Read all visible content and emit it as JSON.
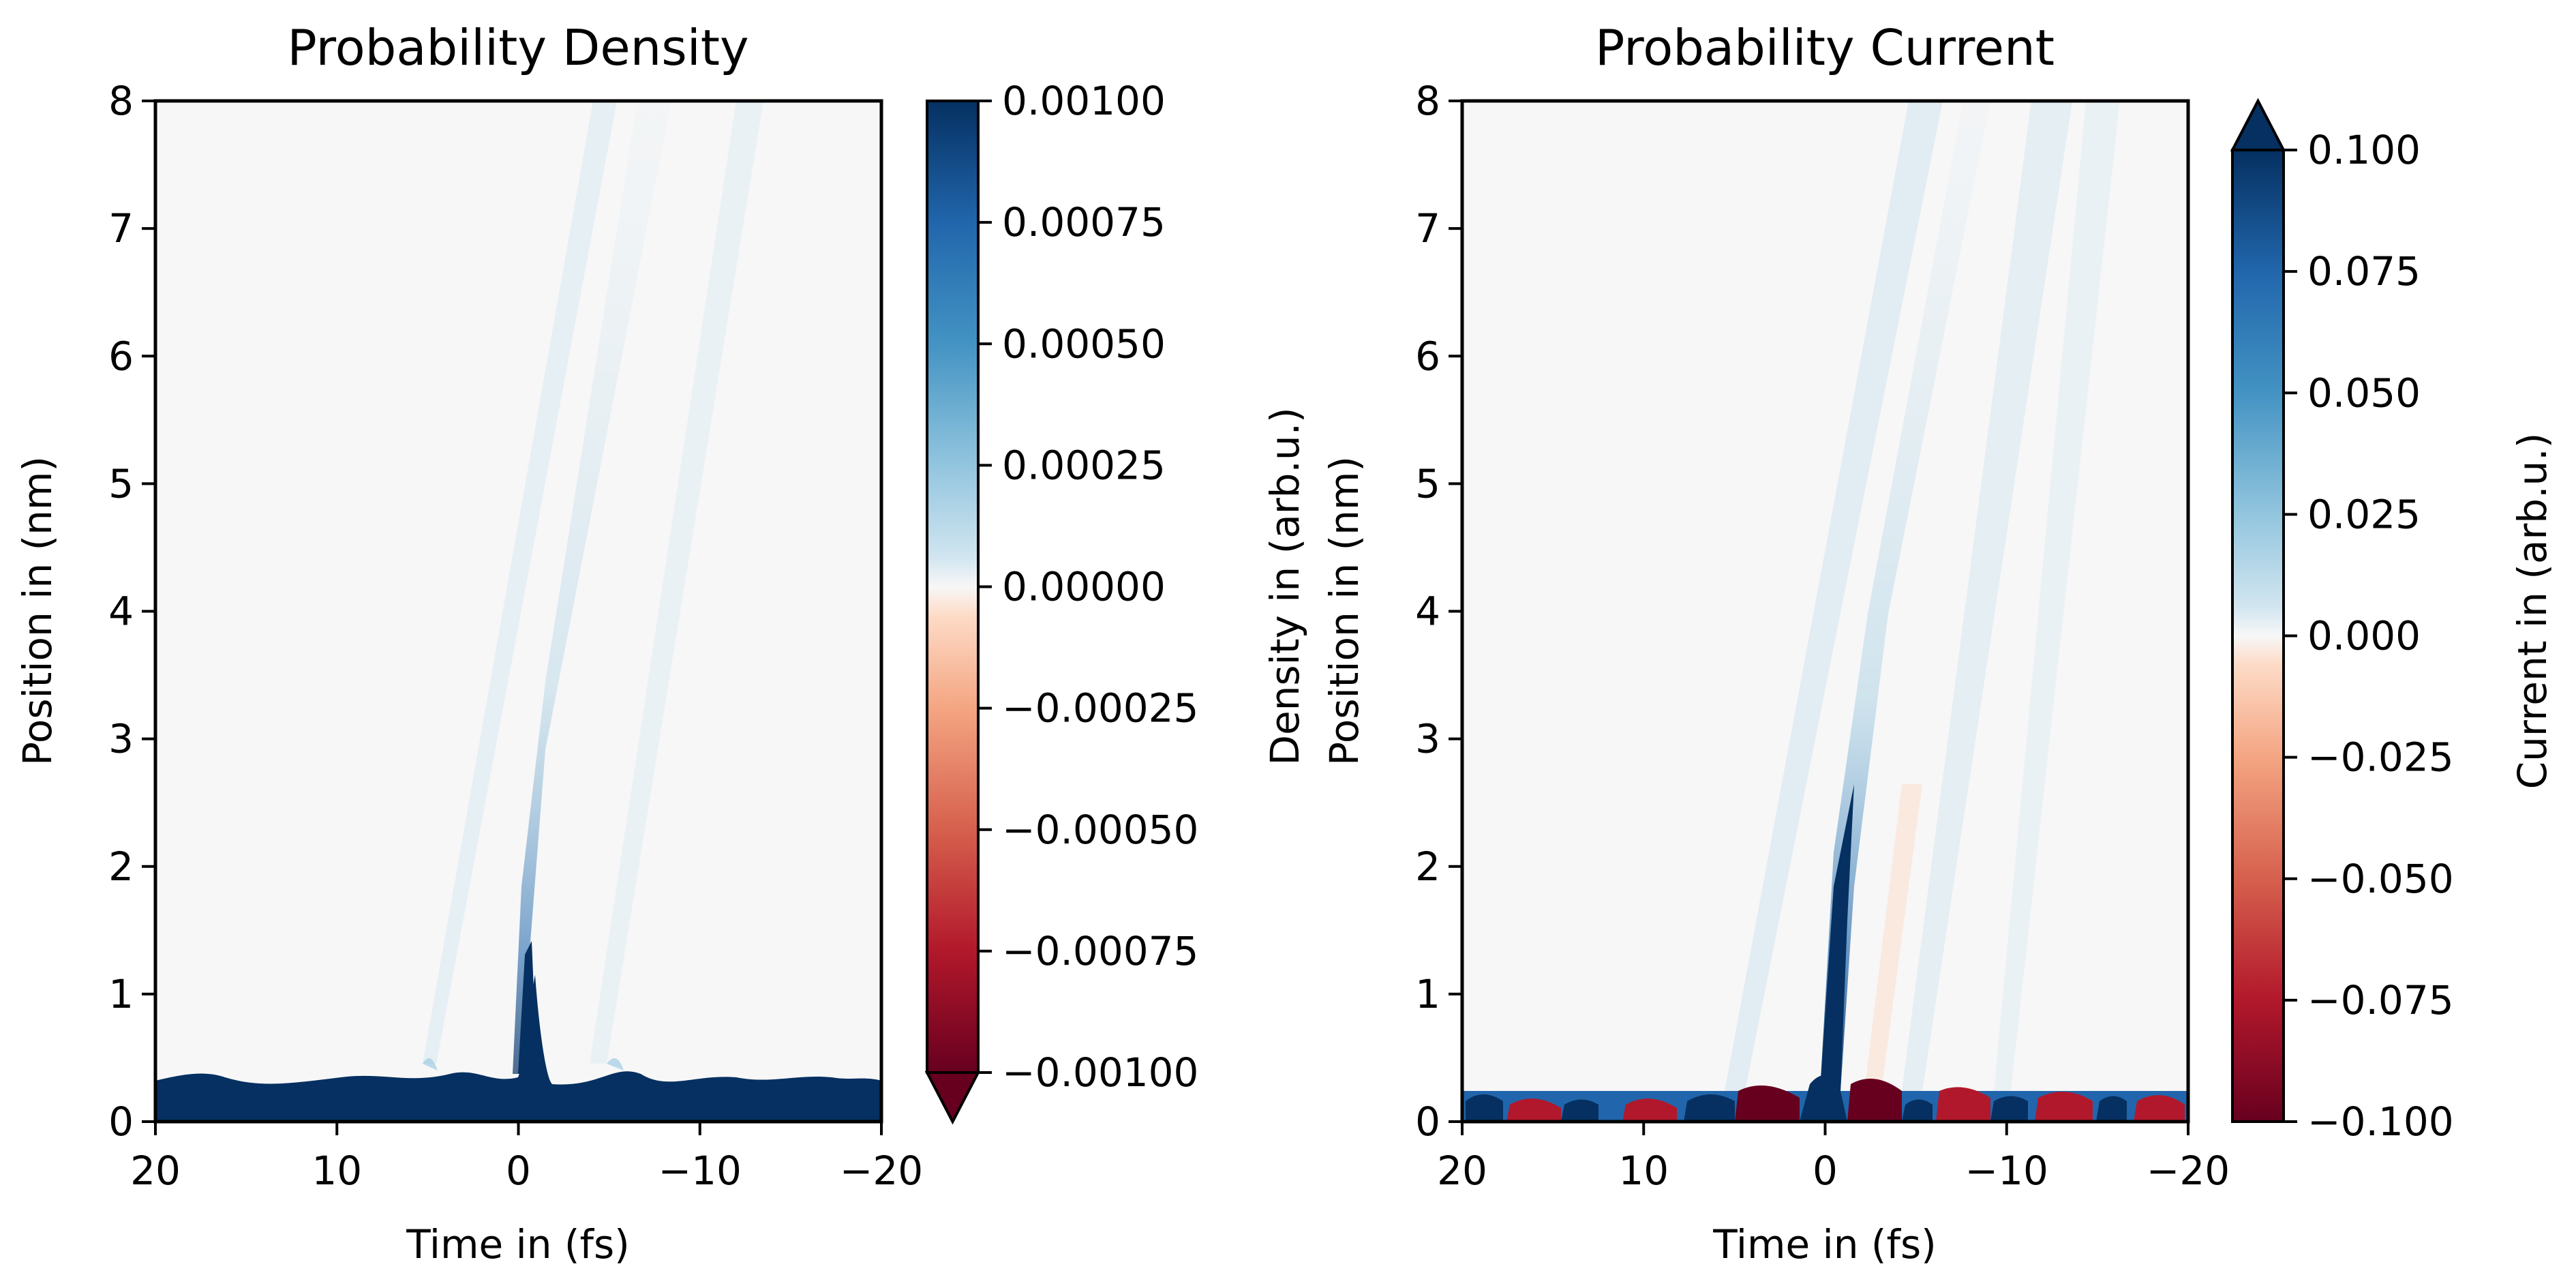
{
  "chart_data": [
    {
      "type": "heatmap",
      "title": "Probability Density",
      "xlabel": "Time in (fs)",
      "ylabel": "Position in (nm)",
      "x_ticks": [
        "20",
        "10",
        "0",
        "−10",
        "−20"
      ],
      "y_ticks": [
        "0",
        "1",
        "2",
        "3",
        "4",
        "5",
        "6",
        "7",
        "8"
      ],
      "xlim": [
        20,
        -20
      ],
      "ylim": [
        0,
        8
      ],
      "colorbar": {
        "label": "Density in (arb.u.)",
        "range": [
          -0.001,
          0.001
        ],
        "ticks": [
          "0.00100",
          "0.00075",
          "0.00050",
          "0.00025",
          "0.00000",
          "−0.00025",
          "−0.00050",
          "−0.00075",
          "−0.00100"
        ],
        "extend": "min",
        "colormap": "RdBu"
      }
    },
    {
      "type": "heatmap",
      "title": "Probability Current",
      "xlabel": "Time in (fs)",
      "ylabel": "Position in (nm)",
      "x_ticks": [
        "20",
        "10",
        "0",
        "−10",
        "−20"
      ],
      "y_ticks": [
        "0",
        "1",
        "2",
        "3",
        "4",
        "5",
        "6",
        "7",
        "8"
      ],
      "xlim": [
        20,
        -20
      ],
      "ylim": [
        0,
        8
      ],
      "colorbar": {
        "label": "Current in (arb.u.)",
        "range": [
          -0.1,
          0.1
        ],
        "ticks": [
          "0.100",
          "0.075",
          "0.050",
          "0.025",
          "0.000",
          "−0.025",
          "−0.050",
          "−0.075",
          "−0.100"
        ],
        "extend": "max",
        "colormap": "RdBu"
      }
    }
  ],
  "colors": {
    "dark_blue": "#053061",
    "mid_blue": "#2166ac",
    "light_blue": "#92c5de",
    "neutral": "#f7f7f7",
    "light_red": "#f4a582",
    "mid_red": "#b2182b",
    "dark_red": "#67001f"
  }
}
